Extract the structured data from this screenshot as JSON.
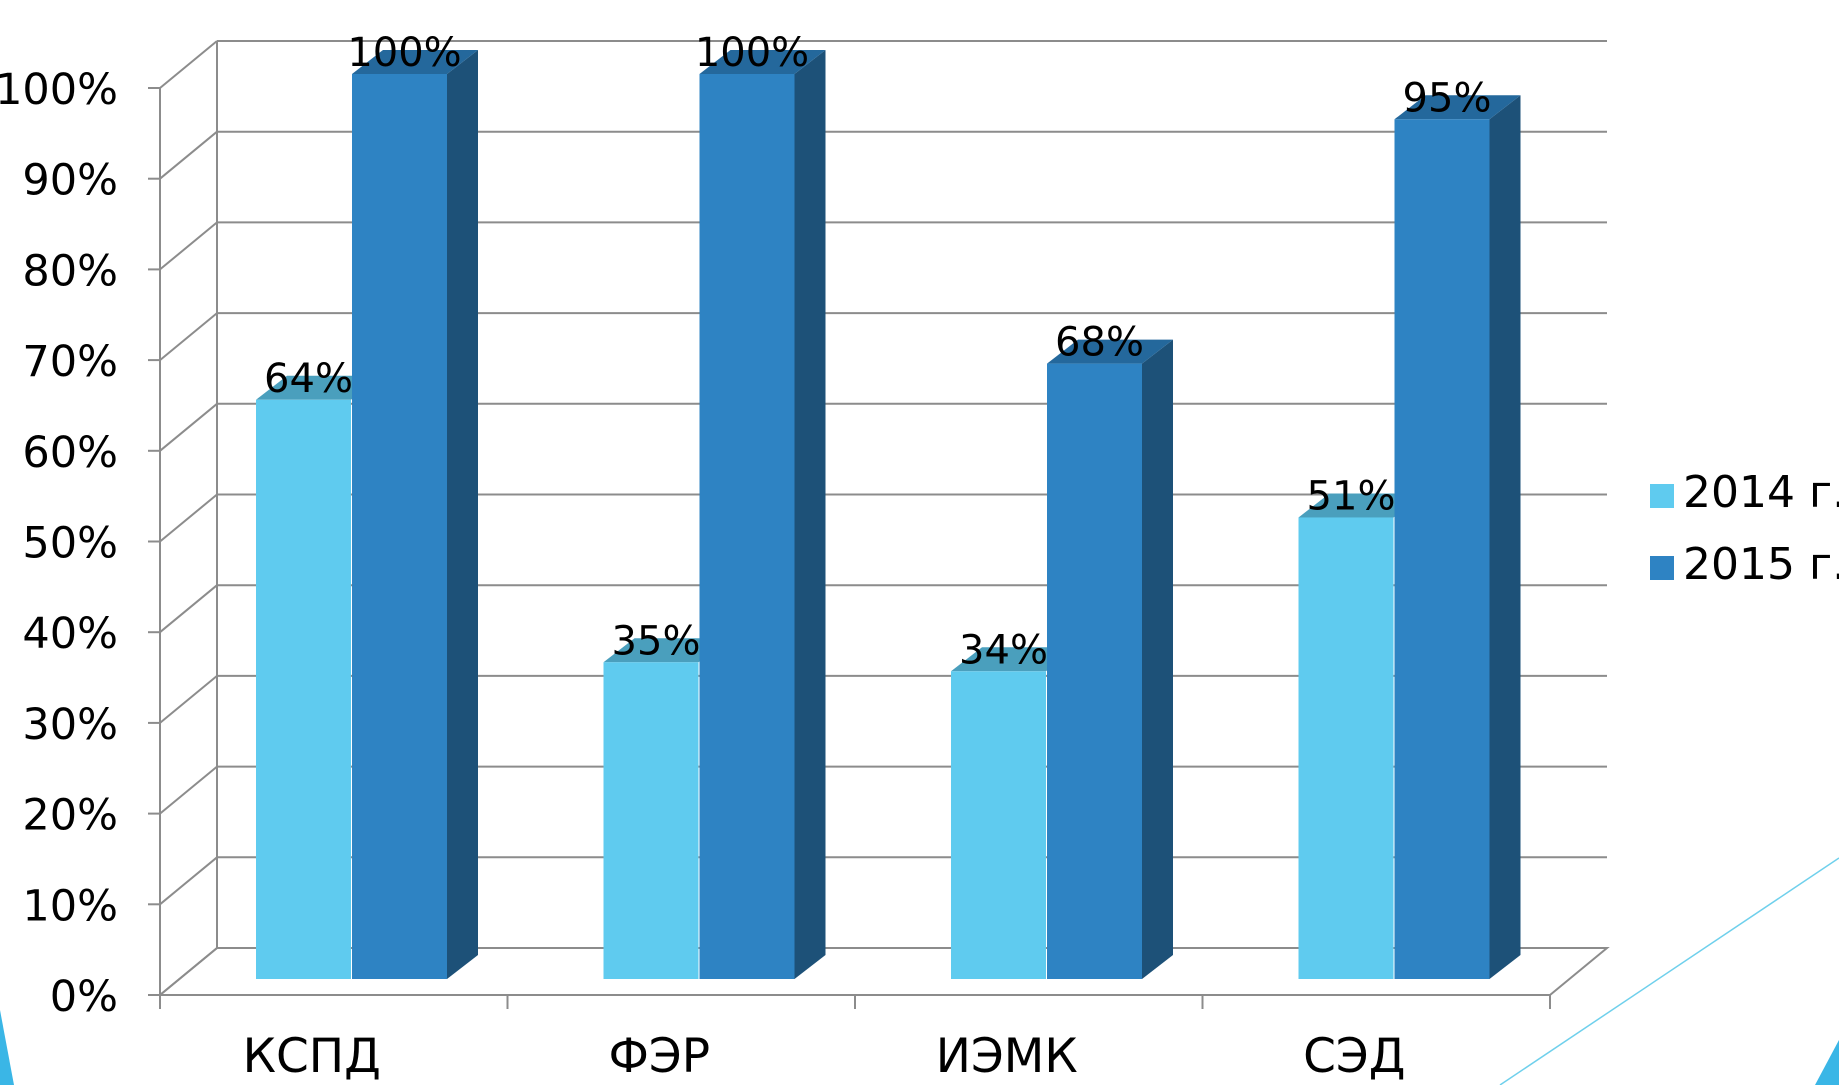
{
  "chart_data": {
    "type": "bar",
    "categories": [
      "КСПД",
      "ФЭР",
      "ИЭМК",
      "СЭД"
    ],
    "series": [
      {
        "name": "2014 г.",
        "values": [
          64,
          35,
          34,
          51
        ],
        "labels": [
          "64%",
          "35%",
          "34%",
          "51%"
        ],
        "color": "#5fcbef",
        "top_color": "#4a9fbd"
      },
      {
        "name": "2015 г.",
        "values": [
          100,
          100,
          68,
          95
        ],
        "labels": [
          "100%",
          "100%",
          "68%",
          "95%"
        ],
        "color": "#2e83c3",
        "top_color": "#24689c",
        "side_color": "#1d5178"
      }
    ],
    "y_ticks": [
      "0%",
      "10%",
      "20%",
      "30%",
      "40%",
      "50%",
      "60%",
      "70%",
      "80%",
      "90%",
      "100%"
    ],
    "ylim": [
      0,
      100
    ],
    "grid": true,
    "legend": "right",
    "three_d": true
  },
  "decor": {
    "accent_color": "#6fd0ec"
  }
}
